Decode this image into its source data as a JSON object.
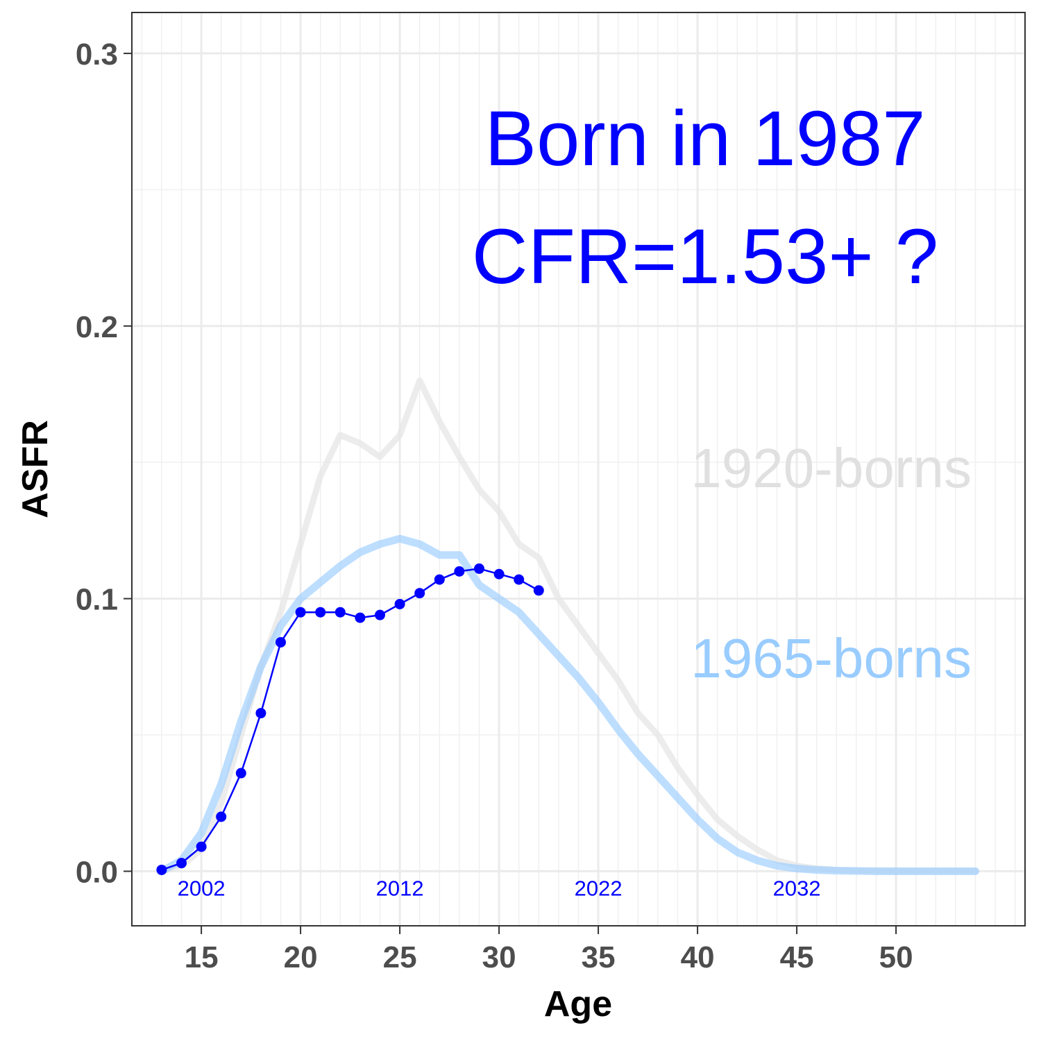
{
  "chart_data": {
    "type": "line",
    "xlabel": "Age",
    "ylabel": "ASFR",
    "xlim": [
      11.5,
      56.5
    ],
    "ylim": [
      -0.02,
      0.315
    ],
    "x_ticks": [
      15,
      20,
      25,
      30,
      35,
      40,
      45,
      50
    ],
    "x_tick_labels": [
      "15",
      "20",
      "25",
      "30",
      "35",
      "40",
      "45",
      "50"
    ],
    "y_ticks": [
      0.0,
      0.1,
      0.2,
      0.3
    ],
    "y_tick_labels": [
      "0.0",
      "0.1",
      "0.2",
      "0.3"
    ],
    "grid": true,
    "annotations": {
      "title_line1": "Born in 1987",
      "title_line2": "CFR=1.53+ ?",
      "year_labels": [
        {
          "x": 15,
          "text": "2002"
        },
        {
          "x": 25,
          "text": "2012"
        },
        {
          "x": 35,
          "text": "2022"
        },
        {
          "x": 45,
          "text": "2032"
        }
      ]
    },
    "series": [
      {
        "name": "1920-borns",
        "color": "#e6e6e6",
        "x": [
          13,
          14,
          15,
          16,
          17,
          18,
          19,
          20,
          21,
          22,
          23,
          24,
          25,
          26,
          27,
          28,
          29,
          30,
          31,
          32,
          33,
          34,
          35,
          36,
          37,
          38,
          39,
          40,
          41,
          42,
          43,
          44,
          45,
          46,
          47,
          48,
          49,
          50,
          51,
          52,
          53,
          54
        ],
        "values": [
          0.0,
          0.002,
          0.008,
          0.025,
          0.05,
          0.075,
          0.095,
          0.12,
          0.145,
          0.16,
          0.157,
          0.152,
          0.16,
          0.18,
          0.165,
          0.152,
          0.14,
          0.132,
          0.12,
          0.115,
          0.1,
          0.09,
          0.08,
          0.07,
          0.058,
          0.05,
          0.038,
          0.028,
          0.019,
          0.013,
          0.008,
          0.004,
          0.002,
          0.001,
          0.0005,
          0.0002,
          0.0001,
          0.0,
          0.0,
          0.0,
          0.0,
          0.0
        ]
      },
      {
        "name": "1965-borns",
        "color": "#99ccff",
        "x": [
          13,
          14,
          15,
          16,
          17,
          18,
          19,
          20,
          21,
          22,
          23,
          24,
          25,
          26,
          27,
          28,
          29,
          30,
          31,
          32,
          33,
          34,
          35,
          36,
          37,
          38,
          39,
          40,
          41,
          42,
          43,
          44,
          45,
          46,
          47,
          48,
          49,
          50,
          51,
          52,
          53,
          54
        ],
        "values": [
          0.0,
          0.004,
          0.014,
          0.032,
          0.055,
          0.075,
          0.09,
          0.1,
          0.106,
          0.112,
          0.117,
          0.12,
          0.122,
          0.12,
          0.116,
          0.116,
          0.105,
          0.1,
          0.095,
          0.087,
          0.079,
          0.071,
          0.062,
          0.052,
          0.043,
          0.035,
          0.027,
          0.019,
          0.012,
          0.007,
          0.004,
          0.002,
          0.001,
          0.0005,
          0.0002,
          0.0001,
          0.0,
          0.0,
          0.0,
          0.0,
          0.0,
          0.0
        ]
      },
      {
        "name": "1987",
        "color": "#0000ff",
        "x": [
          13,
          14,
          15,
          16,
          17,
          18,
          19,
          20,
          21,
          22,
          23,
          24,
          25,
          26,
          27,
          28,
          29,
          30,
          31,
          32
        ],
        "values": [
          0.0005,
          0.003,
          0.009,
          0.02,
          0.036,
          0.058,
          0.084,
          0.095,
          0.095,
          0.095,
          0.093,
          0.094,
          0.098,
          0.102,
          0.107,
          0.11,
          0.111,
          0.109,
          0.107,
          0.103
        ]
      }
    ]
  }
}
